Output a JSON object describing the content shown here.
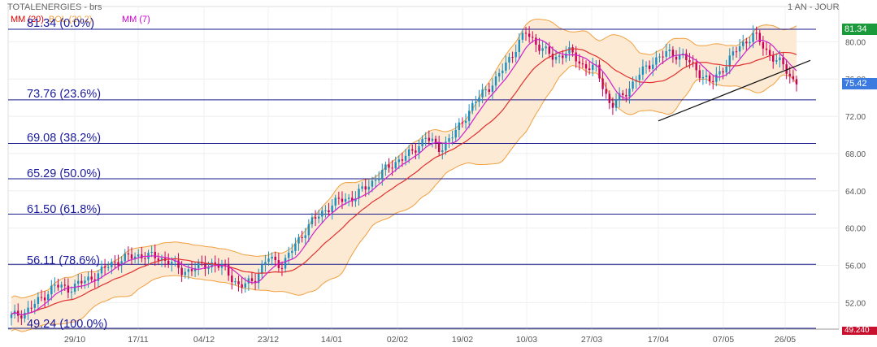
{
  "header": {
    "title": "TOTALENERGIES - brs",
    "period": "1 AN - JOUR"
  },
  "legend": [
    {
      "label": "MM (20)",
      "color": "#e00000"
    },
    {
      "label": "BOL (20,2)",
      "color": "#f0a040"
    },
    {
      "label": "MM (7)",
      "color": "#cc00cc"
    }
  ],
  "colors": {
    "up": "#1a8fc0",
    "down": "#c8005a",
    "mm20": "#e03030",
    "mm7": "#cc22cc",
    "bollinger_fill": "#fde8cf",
    "bollinger_line": "#f0a040",
    "fib_line": "#1a1a8c",
    "trendline": "#111111",
    "last_price_bg": "#3b7be0",
    "high_price_bg": "#1a9a3a",
    "low_price_bg": "#c8102e"
  },
  "chart_data": {
    "type": "candlestick",
    "instrument": "TOTALENERGIES - brs",
    "period": "1 AN - JOUR",
    "ylim": [
      49.24,
      82.0
    ],
    "y_ticks": [
      52.0,
      56.0,
      60.0,
      64.0,
      68.0,
      72.0,
      76.0,
      80.0
    ],
    "x_ticks": [
      "29/10",
      "17/11",
      "04/12",
      "23/12",
      "14/01",
      "02/02",
      "19/02",
      "10/03",
      "27/03",
      "17/04",
      "07/05",
      "26/05"
    ],
    "fibonacci": [
      {
        "price": "81.34",
        "pct": "(0.0%)",
        "value": 81.34
      },
      {
        "price": "73.76",
        "pct": "(23.6%)",
        "value": 73.76
      },
      {
        "price": "69.08",
        "pct": "(38.2%)",
        "value": 69.08
      },
      {
        "price": "65.29",
        "pct": "(50.0%)",
        "value": 65.29
      },
      {
        "price": "61.50",
        "pct": "(61.8%)",
        "value": 61.5
      },
      {
        "price": "56.11",
        "pct": "(78.6%)",
        "value": 56.11
      },
      {
        "price": "49.24",
        "pct": "(100.0%)",
        "value": 49.24
      }
    ],
    "price_markers": {
      "high": "81.34",
      "last": "75.42",
      "low": "49.240"
    },
    "close_path": [
      50.5,
      51.0,
      52.3,
      53.8,
      53.5,
      54.2,
      55.0,
      56.2,
      56.8,
      57.1,
      56.9,
      56.5,
      55.3,
      55.8,
      56.2,
      55.6,
      53.6,
      54.5,
      56.8,
      56.0,
      58.5,
      60.6,
      62.0,
      63.0,
      63.3,
      64.6,
      66.0,
      67.2,
      68.0,
      69.8,
      68.5,
      70.0,
      72.5,
      74.5,
      76.0,
      78.5,
      81.0,
      79.5,
      78.2,
      79.0,
      77.5,
      77.0,
      73.0,
      74.5,
      76.5,
      78.0,
      78.8,
      78.5,
      77.0,
      75.5,
      77.5,
      79.5,
      80.8,
      78.8,
      77.5,
      75.42
    ],
    "trendline": [
      {
        "date": "17/04",
        "value": 71.5
      },
      {
        "date": "26/05",
        "value": 78.0
      }
    ]
  }
}
